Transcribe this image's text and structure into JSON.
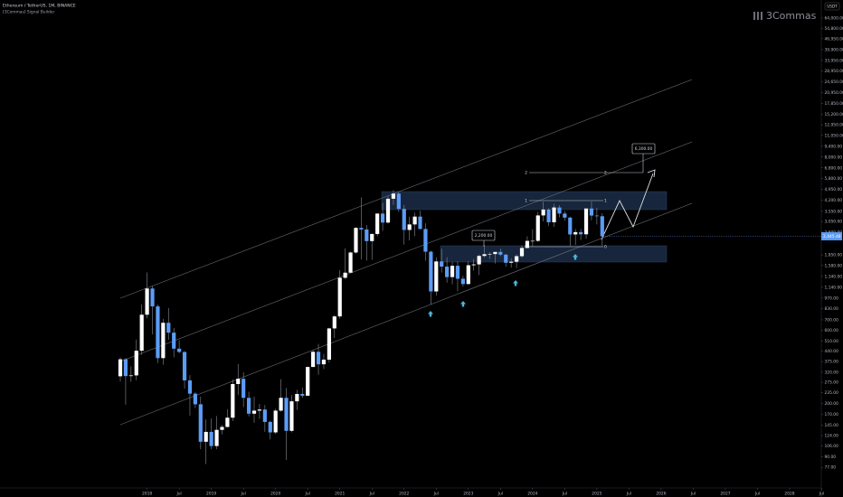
{
  "chart_data": {
    "type": "candlestick",
    "title": "Ethereum / TetherUS, 1M, BINANCE",
    "subtitle": "[3Commas] Signal Builder",
    "watermark": "3Commas",
    "currency": "USDT",
    "log_scale": true,
    "up_color": "#ffffff",
    "down_color": "#5b9cf6",
    "wick_color": "#8a8d96",
    "x": [
      "2017-08",
      "2017-09",
      "2017-10",
      "2017-11",
      "2017-12",
      "2018-01",
      "2018-02",
      "2018-03",
      "2018-04",
      "2018-05",
      "2018-06",
      "2018-07",
      "2018-08",
      "2018-09",
      "2018-10",
      "2018-11",
      "2018-12",
      "2019-01",
      "2019-02",
      "2019-03",
      "2019-04",
      "2019-05",
      "2019-06",
      "2019-07",
      "2019-08",
      "2019-09",
      "2019-10",
      "2019-11",
      "2019-12",
      "2020-01",
      "2020-02",
      "2020-03",
      "2020-04",
      "2020-05",
      "2020-06",
      "2020-07",
      "2020-08",
      "2020-09",
      "2020-10",
      "2020-11",
      "2020-12",
      "2021-01",
      "2021-02",
      "2021-03",
      "2021-04",
      "2021-05",
      "2021-06",
      "2021-07",
      "2021-08",
      "2021-09",
      "2021-10",
      "2021-11",
      "2021-12",
      "2022-01",
      "2022-02",
      "2022-03",
      "2022-04",
      "2022-05",
      "2022-06",
      "2022-07",
      "2022-08",
      "2022-09",
      "2022-10",
      "2022-11",
      "2022-12",
      "2023-01",
      "2023-02",
      "2023-03",
      "2023-04",
      "2023-05",
      "2023-06",
      "2023-07",
      "2023-08",
      "2023-09",
      "2023-10",
      "2023-11",
      "2023-12",
      "2024-01",
      "2024-02",
      "2024-03",
      "2024-04",
      "2024-05",
      "2024-06",
      "2024-07",
      "2024-08",
      "2024-09",
      "2024-10",
      "2024-11",
      "2024-12",
      "2025-01",
      "2025-02"
    ],
    "open": [
      301,
      388,
      302,
      305,
      441,
      756,
      1119,
      856,
      395,
      670,
      578,
      455,
      433,
      283,
      232,
      198,
      113,
      131,
      106,
      135,
      141,
      162,
      268,
      290,
      218,
      172,
      180,
      183,
      152,
      130,
      180,
      218,
      133,
      207,
      231,
      225,
      346,
      434,
      360,
      386,
      616,
      737,
      1314,
      1418,
      1918,
      2772,
      2707,
      2274,
      2530,
      3433,
      3001,
      4287,
      4630,
      3683,
      2688,
      2919,
      3282,
      2727,
      1941,
      1071,
      1678,
      1553,
      1328,
      1572,
      1295,
      1196,
      1585,
      1605,
      1822,
      1869,
      1874,
      1934,
      1856,
      1645,
      1671,
      1815,
      2052,
      2282,
      2283,
      3340,
      3647,
      3014,
      3761,
      3433,
      3232,
      2513,
      2602,
      2518,
      3705,
      3332,
      3300
    ],
    "high": [
      399,
      395,
      349,
      521,
      880,
      1424,
      1160,
      880,
      710,
      835,
      620,
      516,
      438,
      306,
      237,
      222,
      158,
      160,
      166,
      145,
      184,
      286,
      361,
      320,
      239,
      222,
      199,
      196,
      155,
      185,
      288,
      253,
      227,
      246,
      254,
      349,
      445,
      488,
      420,
      622,
      752,
      1476,
      2042,
      1943,
      2798,
      4372,
      2891,
      2552,
      3466,
      4027,
      4460,
      4868,
      4778,
      3900,
      3282,
      3479,
      3580,
      2966,
      1972,
      1786,
      2030,
      1789,
      1663,
      1680,
      1353,
      1680,
      1742,
      1857,
      2141,
      1928,
      1930,
      2029,
      1880,
      1754,
      1865,
      2136,
      2445,
      2717,
      3523,
      4093,
      3730,
      3975,
      3887,
      3563,
      3280,
      2728,
      2722,
      3682,
      4107,
      3744,
      3450
    ],
    "low": [
      278,
      197,
      277,
      284,
      415,
      716,
      564,
      367,
      358,
      520,
      400,
      425,
      250,
      167,
      187,
      101,
      81,
      101,
      101,
      126,
      140,
      154,
      228,
      190,
      165,
      150,
      159,
      131,
      117,
      127,
      177,
      86,
      130,
      182,
      218,
      225,
      345,
      308,
      335,
      370,
      534,
      714,
      1293,
      1417,
      1886,
      1728,
      1700,
      1718,
      2450,
      2651,
      2960,
      3905,
      3525,
      2159,
      2300,
      2450,
      2711,
      1700,
      880,
      1006,
      1422,
      1220,
      1190,
      1073,
      1150,
      1191,
      1461,
      1368,
      1785,
      1737,
      1626,
      1816,
      1550,
      1531,
      1522,
      1766,
      2048,
      2100,
      2245,
      3056,
      2852,
      2817,
      3240,
      3087,
      2111,
      2150,
      2310,
      2357,
      3099,
      2920,
      2120
    ],
    "close": [
      388,
      302,
      305,
      441,
      756,
      1119,
      856,
      395,
      670,
      578,
      455,
      433,
      283,
      232,
      198,
      113,
      131,
      106,
      135,
      141,
      162,
      268,
      290,
      218,
      172,
      180,
      183,
      152,
      130,
      180,
      218,
      133,
      207,
      231,
      225,
      346,
      434,
      360,
      386,
      616,
      737,
      1314,
      1418,
      1918,
      2772,
      2707,
      2274,
      2530,
      3433,
      3001,
      4287,
      4630,
      3683,
      2688,
      2919,
      3282,
      2727,
      1941,
      1071,
      1678,
      1553,
      1328,
      1572,
      1295,
      1196,
      1585,
      1605,
      1822,
      1869,
      1874,
      1934,
      1856,
      1645,
      1671,
      1815,
      2052,
      2282,
      2283,
      3340,
      3647,
      3014,
      3761,
      3433,
      3232,
      2513,
      2602,
      2518,
      3705,
      3332,
      3300,
      2445
    ],
    "ylim": [
      56.6,
      83850
    ],
    "yticks": [
      {
        "value": 64000,
        "label": "64,000.00"
      },
      {
        "value": 54800,
        "label": "54,800.00"
      },
      {
        "value": 46950,
        "label": "46,950.00"
      },
      {
        "value": 39900,
        "label": "39,900.00"
      },
      {
        "value": 33950,
        "label": "33,950.00"
      },
      {
        "value": 28950,
        "label": "28,950.00"
      },
      {
        "value": 24650,
        "label": "24,650.00"
      },
      {
        "value": 20950,
        "label": "20,950.00"
      },
      {
        "value": 17850,
        "label": "17,850.00"
      },
      {
        "value": 15200,
        "label": "15,200.00"
      },
      {
        "value": 12950,
        "label": "12,950.00"
      },
      {
        "value": 11050,
        "label": "11,050.00"
      },
      {
        "value": 9400,
        "label": "9,400.00"
      },
      {
        "value": 8000,
        "label": "8,000.00"
      },
      {
        "value": 6800,
        "label": "6,800.00"
      },
      {
        "value": 5800,
        "label": "5,800.00"
      },
      {
        "value": 4950,
        "label": "4,950.00"
      },
      {
        "value": 4200,
        "label": "4,200.00"
      },
      {
        "value": 3550,
        "label": "3,550.00"
      },
      {
        "value": 3050,
        "label": "3,050.00"
      },
      {
        "value": 2600,
        "label": "2,600.00"
      },
      {
        "value": 1850,
        "label": "1,850.00"
      },
      {
        "value": 1580,
        "label": "1,580.00"
      },
      {
        "value": 1340,
        "label": "1,340.00"
      },
      {
        "value": 1140,
        "label": "1,140.00"
      },
      {
        "value": 970,
        "label": "970.00"
      },
      {
        "value": 830,
        "label": "830.00"
      },
      {
        "value": 700,
        "label": "700.00"
      },
      {
        "value": 600,
        "label": "600.00"
      },
      {
        "value": 510,
        "label": "510.00"
      },
      {
        "value": 440,
        "label": "440.00"
      },
      {
        "value": 375,
        "label": "375.00"
      },
      {
        "value": 320,
        "label": "320.00"
      },
      {
        "value": 275,
        "label": "275.00"
      },
      {
        "value": 235,
        "label": "235.00"
      },
      {
        "value": 200,
        "label": "200.00"
      },
      {
        "value": 170,
        "label": "170.00"
      },
      {
        "value": 145,
        "label": "145.00"
      },
      {
        "value": 124,
        "label": "124.00"
      },
      {
        "value": 106,
        "label": "106.00"
      },
      {
        "value": 90,
        "label": "90.00"
      },
      {
        "value": 77,
        "label": "77.00"
      }
    ],
    "price_label": {
      "value": 2445.48,
      "label": "2,445.48"
    },
    "xticks": [
      {
        "value": "2018-01",
        "label": "2018"
      },
      {
        "value": "2018-07",
        "label": "Jul"
      },
      {
        "value": "2019-01",
        "label": "2019"
      },
      {
        "value": "2019-07",
        "label": "Jul"
      },
      {
        "value": "2020-01",
        "label": "2020"
      },
      {
        "value": "2020-07",
        "label": "Jul"
      },
      {
        "value": "2021-01",
        "label": "2021"
      },
      {
        "value": "2021-07",
        "label": "Jul"
      },
      {
        "value": "2022-01",
        "label": "2022"
      },
      {
        "value": "2022-07",
        "label": "Jul"
      },
      {
        "value": "2023-01",
        "label": "2023"
      },
      {
        "value": "2023-07",
        "label": "Jul"
      },
      {
        "value": "2024-01",
        "label": "2024"
      },
      {
        "value": "2024-07",
        "label": "Jul"
      },
      {
        "value": "2025-01",
        "label": "2025"
      },
      {
        "value": "2025-07",
        "label": "Jul"
      },
      {
        "value": "2026-01",
        "label": "2026"
      },
      {
        "value": "2026-07",
        "label": "Jul"
      },
      {
        "value": "2027-01",
        "label": "2027"
      },
      {
        "value": "2027-07",
        "label": "Jul"
      },
      {
        "value": "2028-01",
        "label": "2028"
      },
      {
        "value": "2028-07",
        "label": "Jul"
      }
    ],
    "annotations": {
      "target": "6,300.00",
      "level": "2,200.00",
      "fib": [
        "0",
        "1",
        "2"
      ]
    }
  }
}
